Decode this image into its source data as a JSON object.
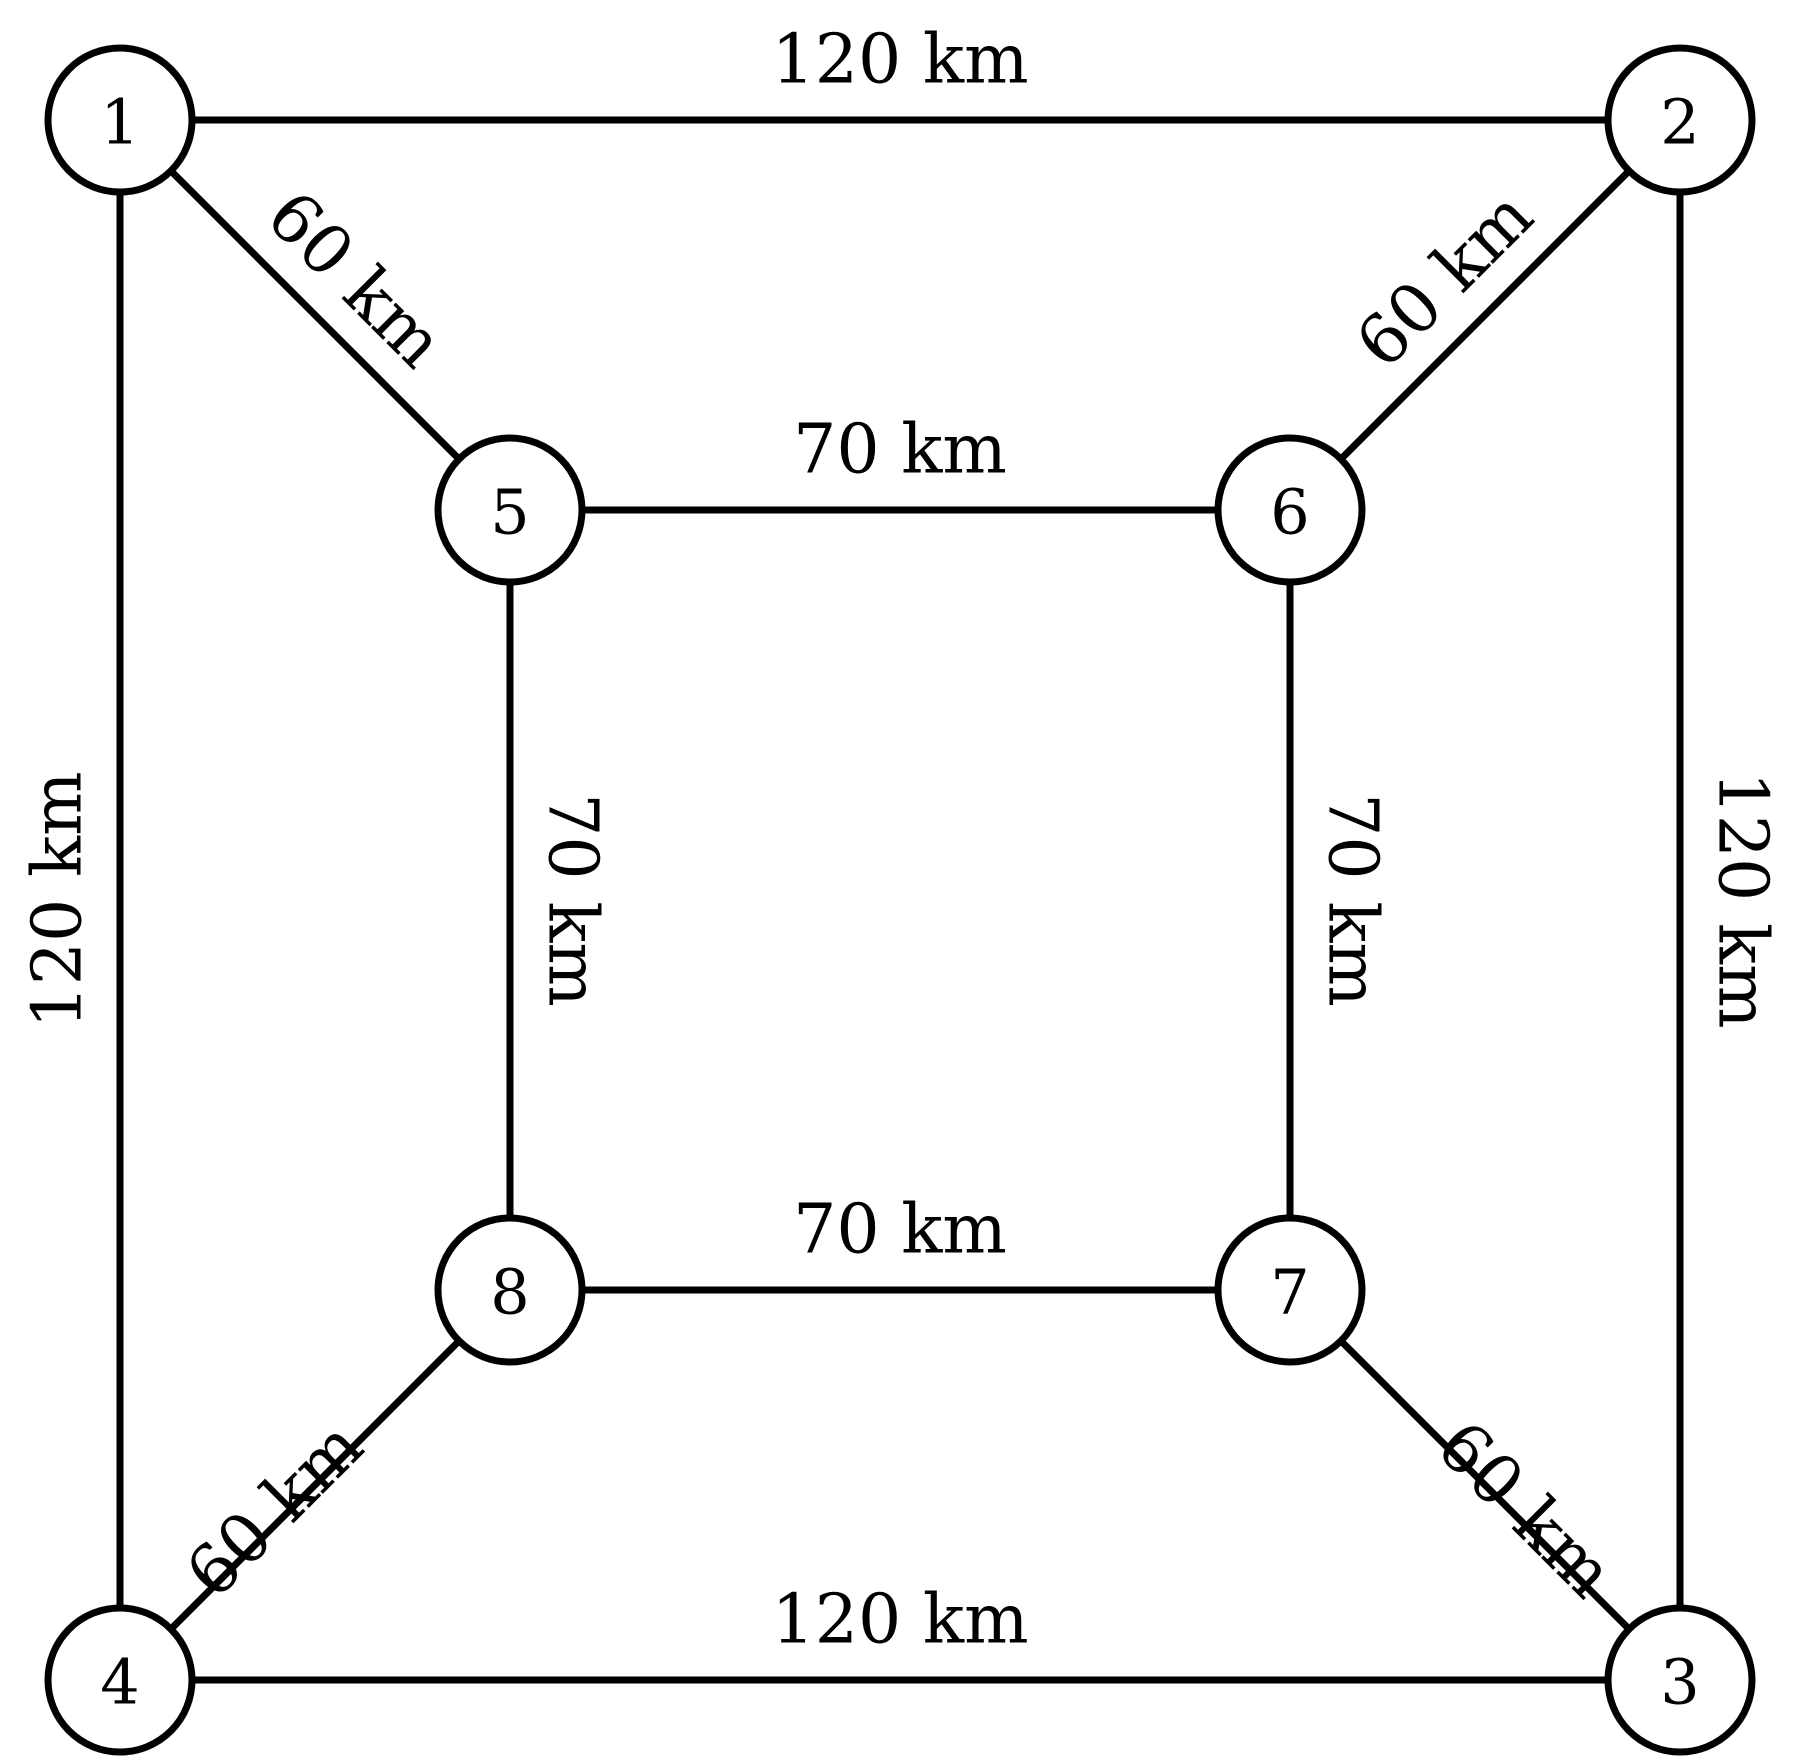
{
  "nodes": [
    {
      "id": "1",
      "label": "1"
    },
    {
      "id": "2",
      "label": "2"
    },
    {
      "id": "3",
      "label": "3"
    },
    {
      "id": "4",
      "label": "4"
    },
    {
      "id": "5",
      "label": "5"
    },
    {
      "id": "6",
      "label": "6"
    },
    {
      "id": "7",
      "label": "7"
    },
    {
      "id": "8",
      "label": "8"
    }
  ],
  "edges": [
    {
      "from": "1",
      "to": "2",
      "label": "120 km"
    },
    {
      "from": "2",
      "to": "3",
      "label": "120 km"
    },
    {
      "from": "4",
      "to": "3",
      "label": "120 km"
    },
    {
      "from": "1",
      "to": "4",
      "label": "120 km"
    },
    {
      "from": "1",
      "to": "5",
      "label": "60 km"
    },
    {
      "from": "2",
      "to": "6",
      "label": "60 km"
    },
    {
      "from": "7",
      "to": "3",
      "label": "60 km"
    },
    {
      "from": "8",
      "to": "4",
      "label": "60 km"
    },
    {
      "from": "5",
      "to": "6",
      "label": "70 km"
    },
    {
      "from": "6",
      "to": "7",
      "label": "70 km"
    },
    {
      "from": "8",
      "to": "7",
      "label": "70 km"
    },
    {
      "from": "5",
      "to": "8",
      "label": "70 km"
    }
  ]
}
